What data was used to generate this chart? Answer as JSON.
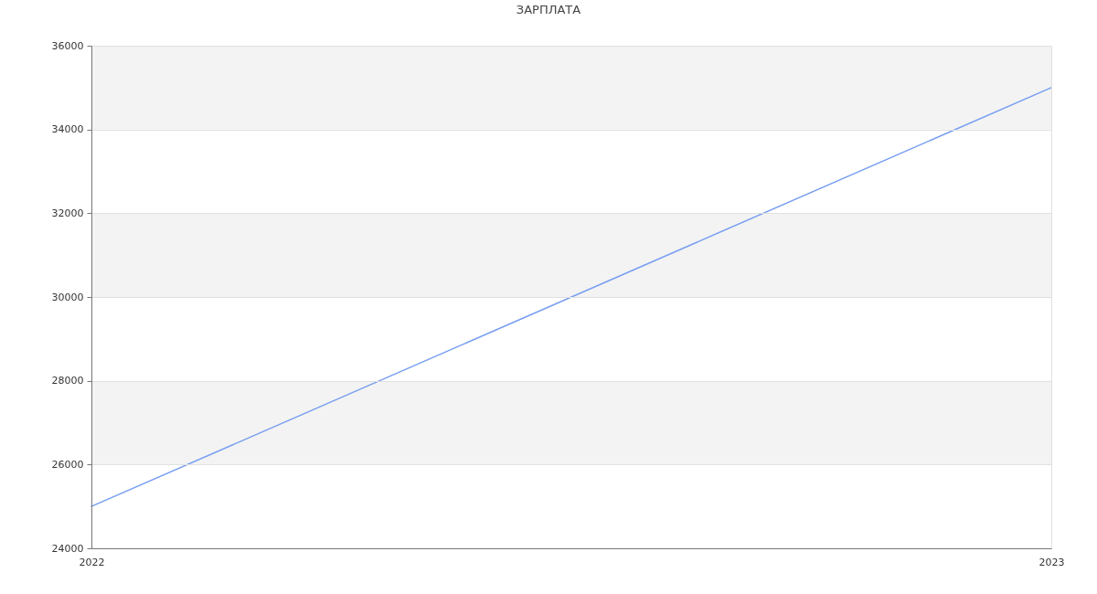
{
  "chart_data": {
    "type": "line",
    "title": "ЗАРПЛАТА",
    "x": [
      "2022",
      "2023"
    ],
    "series": [
      {
        "color": "#779ef0",
        "values": [
          25000,
          35000
        ]
      }
    ],
    "xlim": [
      "2022",
      "2023"
    ],
    "xticks": [
      "2022",
      "2023"
    ],
    "ylim": [
      24000,
      36000
    ],
    "yticks": [
      24000,
      26000,
      28000,
      30000,
      32000,
      34000,
      36000
    ],
    "bands": [
      {
        "axis": "y",
        "from": 26000,
        "to": 28000,
        "color": "#f3f3f3"
      },
      {
        "axis": "y",
        "from": 30000,
        "to": 32000,
        "color": "#f3f3f3"
      },
      {
        "axis": "y",
        "from": 34000,
        "to": 36000,
        "color": "#f3f3f3"
      }
    ],
    "grid": true,
    "line_style": "solid"
  }
}
